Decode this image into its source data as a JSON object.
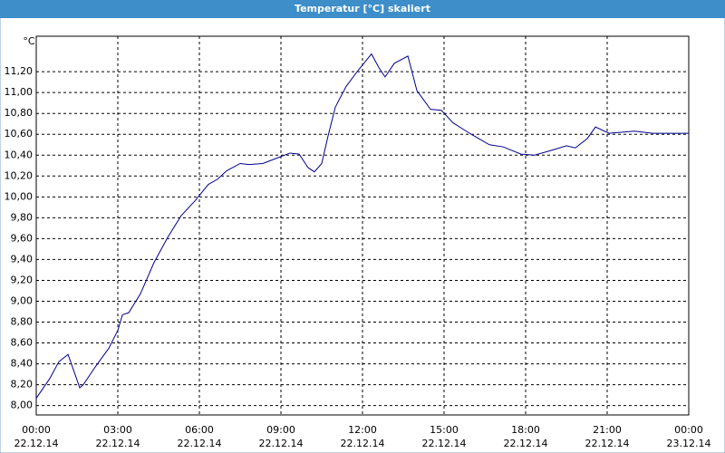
{
  "chart_data": {
    "type": "line",
    "title": "Temperatur [°C] skaliert",
    "y_unit": "°C",
    "series": [
      {
        "color": "#00008b",
        "x": [
          0,
          0.5,
          0.83,
          1.17,
          1.6,
          1.73,
          2.17,
          2.67,
          3.0,
          3.17,
          3.4,
          3.83,
          4.33,
          4.83,
          5.33,
          5.83,
          6.33,
          6.67,
          7.0,
          7.5,
          7.83,
          8.33,
          8.83,
          9.33,
          9.67,
          10.0,
          10.23,
          10.5,
          10.73,
          11.0,
          11.4,
          11.83,
          12.33,
          12.6,
          12.83,
          13.17,
          13.67,
          14.0,
          14.5,
          14.9,
          15.33,
          16.0,
          16.67,
          17.17,
          17.83,
          18.33,
          19.0,
          19.5,
          19.83,
          20.27,
          20.57,
          21.07,
          22.0,
          22.67,
          24.0
        ],
        "values": [
          8.07,
          8.26,
          8.42,
          8.49,
          8.17,
          8.2,
          8.37,
          8.55,
          8.72,
          8.87,
          8.89,
          9.07,
          9.37,
          9.61,
          9.82,
          9.96,
          10.12,
          10.17,
          10.25,
          10.32,
          10.31,
          10.32,
          10.37,
          10.42,
          10.41,
          10.28,
          10.24,
          10.32,
          10.58,
          10.86,
          11.06,
          11.21,
          11.37,
          11.24,
          11.15,
          11.28,
          11.35,
          11.02,
          10.84,
          10.83,
          10.71,
          10.6,
          10.5,
          10.48,
          10.41,
          10.4,
          10.45,
          10.49,
          10.47,
          10.56,
          10.67,
          10.61,
          10.63,
          10.61,
          10.61
        ]
      }
    ],
    "xlim": [
      0,
      24
    ],
    "xticks": [
      {
        "value": 0,
        "label": "00:00",
        "date": "22.12.14"
      },
      {
        "value": 3,
        "label": "03:00",
        "date": "22.12.14"
      },
      {
        "value": 6,
        "label": "06:00",
        "date": "22.12.14"
      },
      {
        "value": 9,
        "label": "09:00",
        "date": "22.12.14"
      },
      {
        "value": 12,
        "label": "12:00",
        "date": "22.12.14"
      },
      {
        "value": 15,
        "label": "15:00",
        "date": "22.12.14"
      },
      {
        "value": 18,
        "label": "18:00",
        "date": "22.12.14"
      },
      {
        "value": 21,
        "label": "21:00",
        "date": "22.12.14"
      },
      {
        "value": 24,
        "label": "00:00",
        "date": "23.12.14"
      }
    ],
    "ylim": [
      7.91,
      11.54
    ],
    "yticks": [
      {
        "value": 8,
        "label": "8,00"
      },
      {
        "value": 8.2,
        "label": "8,20"
      },
      {
        "value": 8.4,
        "label": "8,40"
      },
      {
        "value": 8.6,
        "label": "8,60"
      },
      {
        "value": 8.8,
        "label": "8,80"
      },
      {
        "value": 9,
        "label": "9,00"
      },
      {
        "value": 9.2,
        "label": "9,20"
      },
      {
        "value": 9.4,
        "label": "9,40"
      },
      {
        "value": 9.6,
        "label": "9,60"
      },
      {
        "value": 9.8,
        "label": "9,80"
      },
      {
        "value": 10,
        "label": "10,00"
      },
      {
        "value": 10.2,
        "label": "10,20"
      },
      {
        "value": 10.4,
        "label": "10,40"
      },
      {
        "value": 10.6,
        "label": "10,60"
      },
      {
        "value": 10.8,
        "label": "10,80"
      },
      {
        "value": 11,
        "label": "11,00"
      },
      {
        "value": 11.2,
        "label": "11,20"
      }
    ],
    "grid": true
  }
}
